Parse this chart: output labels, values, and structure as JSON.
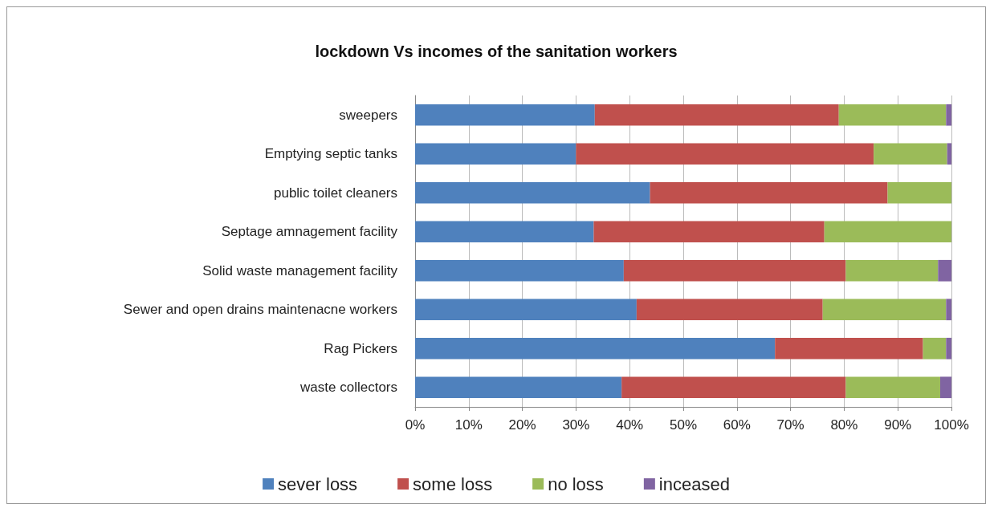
{
  "chart_data": {
    "type": "bar",
    "orientation": "horizontal",
    "stacked": true,
    "title": "lockdown Vs incomes of the sanitation workers",
    "categories": [
      "sweepers",
      "Emptying septic tanks",
      "public toilet cleaners",
      "Septage amnagement facility",
      "Solid waste management facility",
      "Sewer and open drains maintenacne workers",
      "Rag Pickers",
      "waste collectors"
    ],
    "series": [
      {
        "name": "sever loss",
        "color": "#4f81bd",
        "values": [
          33.5,
          30,
          43.8,
          33.3,
          38.9,
          41.3,
          67.1,
          38.5
        ]
      },
      {
        "name": "some loss",
        "color": "#c0504d",
        "values": [
          45.5,
          55.5,
          44.3,
          43,
          41.4,
          34.7,
          27.6,
          41.8
        ]
      },
      {
        "name": "no loss",
        "color": "#9bbb59",
        "values": [
          20,
          13.7,
          11.9,
          23.7,
          17.2,
          23,
          4.3,
          17.6
        ]
      },
      {
        "name": "inceased",
        "color": "#8064a2",
        "values": [
          1,
          0.8,
          0,
          0,
          2.5,
          1,
          1,
          2.1
        ]
      }
    ],
    "xlim": [
      0,
      100
    ],
    "xticks": [
      {
        "value": 0,
        "label": "0%"
      },
      {
        "value": 10,
        "label": "10%"
      },
      {
        "value": 20,
        "label": "20%"
      },
      {
        "value": 30,
        "label": "30%"
      },
      {
        "value": 40,
        "label": "40%"
      },
      {
        "value": 50,
        "label": "50%"
      },
      {
        "value": 60,
        "label": "60%"
      },
      {
        "value": 70,
        "label": "70%"
      },
      {
        "value": 80,
        "label": "80%"
      },
      {
        "value": 90,
        "label": "90%"
      },
      {
        "value": 100,
        "label": "100%"
      }
    ],
    "grid": "x",
    "legend": "bottom"
  }
}
